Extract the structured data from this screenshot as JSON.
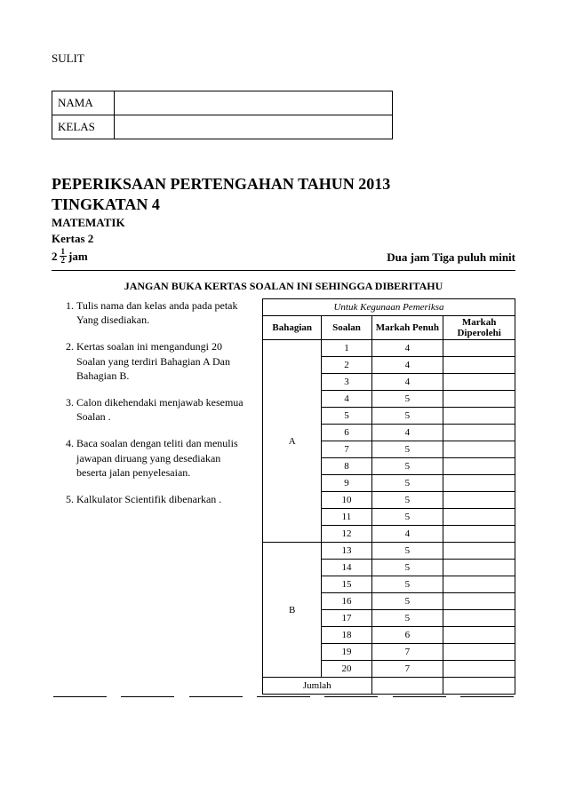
{
  "doc": {
    "classification": "SULIT",
    "name_label": "NAMA",
    "class_label": "KELAS",
    "title_line1": "PEPERIKSAAN PERTENGAHAN TAHUN 2013",
    "title_line2": "TINGKATAN 4",
    "subject": "MATEMATIK",
    "paper": "Kertas 2",
    "dur_whole": "2",
    "dur_num": "1",
    "dur_den": "2",
    "dur_unit": "jam",
    "dur_words": "Dua jam Tiga puluh minit",
    "warning": "JANGAN BUKA KERTAS SOALAN INI SEHINGGA DIBERITAHU"
  },
  "instructions": [
    "Tulis nama dan  kelas anda pada petak\nYang disediakan.",
    "Kertas soalan ini mengandungi 20 Soalan yang terdiri Bahagian A Dan Bahagian B.",
    "Calon dikehendaki menjawab kesemua Soalan .",
    "Baca soalan dengan  teliti dan menulis jawapan diruang yang desediakan beserta  jalan penyelesaian.",
    "Kalkulator Scientifik dibenarkan ."
  ],
  "marks": {
    "header_title": "Untuk Kegunaan Pemeriksa",
    "col_bahagian": "Bahagian",
    "col_soalan": "Soalan",
    "col_markah_penuh": "Markah Penuh",
    "col_markah_diperolehi": "Markah Diperolehi",
    "section_a_label": "A",
    "section_b_label": "B",
    "jumlah": "Jumlah",
    "rowsA": [
      {
        "q": "1",
        "m": "4"
      },
      {
        "q": "2",
        "m": "4"
      },
      {
        "q": "3",
        "m": "4"
      },
      {
        "q": "4",
        "m": "5"
      },
      {
        "q": "5",
        "m": "5"
      },
      {
        "q": "6",
        "m": "4"
      },
      {
        "q": "7",
        "m": "5"
      },
      {
        "q": "8",
        "m": "5"
      },
      {
        "q": "9",
        "m": "5"
      },
      {
        "q": "10",
        "m": "5"
      },
      {
        "q": "11",
        "m": "5"
      },
      {
        "q": "12",
        "m": "4"
      }
    ],
    "rowsB": [
      {
        "q": "13",
        "m": "5"
      },
      {
        "q": "14",
        "m": "5"
      },
      {
        "q": "15",
        "m": "5"
      },
      {
        "q": "16",
        "m": "5"
      },
      {
        "q": "17",
        "m": "5"
      },
      {
        "q": "18",
        "m": "6"
      },
      {
        "q": "19",
        "m": "7"
      },
      {
        "q": "20",
        "m": "7"
      }
    ]
  }
}
